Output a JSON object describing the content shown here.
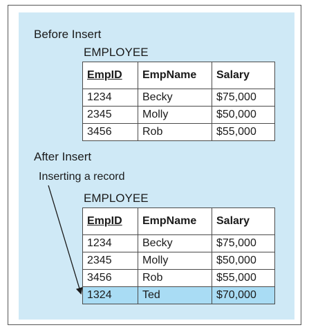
{
  "before": {
    "heading": "Before Insert",
    "table_name": "EMPLOYEE",
    "columns": [
      "EmpID",
      "EmpName",
      "Salary"
    ],
    "rows": [
      [
        "1234",
        "Becky",
        "$75,000"
      ],
      [
        "2345",
        "Molly",
        "$50,000"
      ],
      [
        "3456",
        "Rob",
        "$55,000"
      ]
    ]
  },
  "after": {
    "heading": "After Insert",
    "annotation": "Inserting a record",
    "table_name": "EMPLOYEE",
    "columns": [
      "EmpID",
      "EmpName",
      "Salary"
    ],
    "rows": [
      [
        "1234",
        "Becky",
        "$75,000"
      ],
      [
        "2345",
        "Molly",
        "$50,000"
      ],
      [
        "3456",
        "Rob",
        "$55,000"
      ],
      [
        "1324",
        "Ted",
        "$70,000"
      ]
    ],
    "highlight_color": "#a9dcf4"
  },
  "colors": {
    "panel": "#cfe9f6",
    "border": "#4a4a4a"
  }
}
